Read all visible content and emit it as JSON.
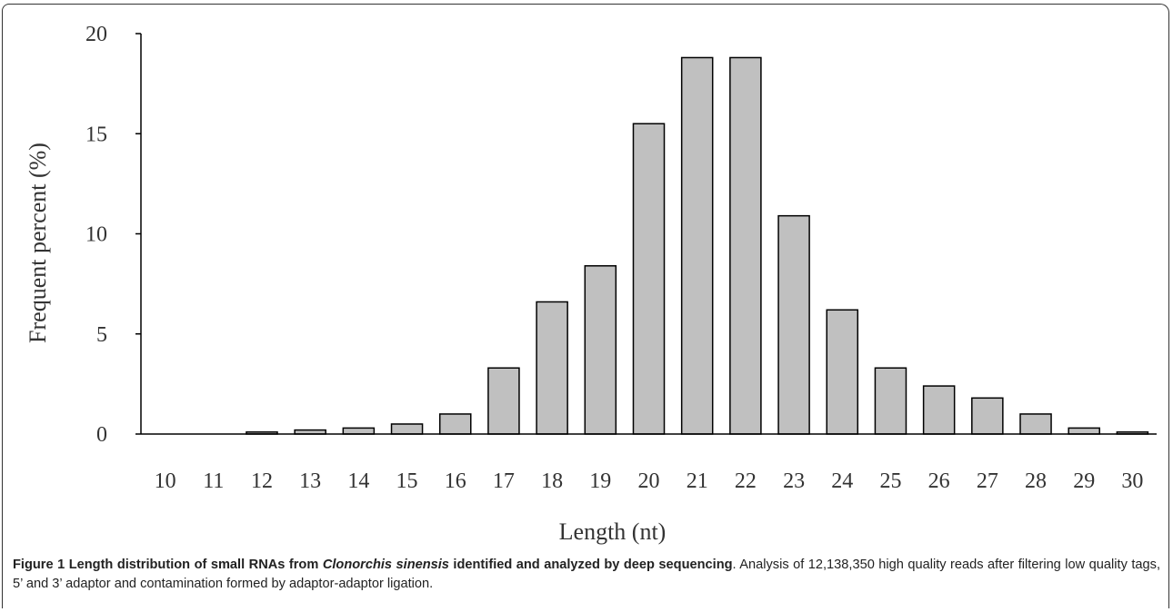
{
  "chart_data": {
    "type": "bar",
    "categories": [
      "10",
      "11",
      "12",
      "13",
      "14",
      "15",
      "16",
      "17",
      "18",
      "19",
      "20",
      "21",
      "22",
      "23",
      "24",
      "25",
      "26",
      "27",
      "28",
      "29",
      "30"
    ],
    "values": [
      0,
      0,
      0.1,
      0.2,
      0.3,
      0.5,
      1.0,
      3.3,
      6.6,
      8.4,
      15.5,
      18.8,
      18.8,
      10.9,
      6.2,
      3.3,
      2.4,
      1.8,
      1.0,
      0.3,
      0.1
    ],
    "xlabel": "Length (nt)",
    "ylabel": "Frequent percent (%)",
    "ylim": [
      0,
      20
    ],
    "yticks": [
      "0",
      "5",
      "10",
      "15",
      "20"
    ],
    "bar_color": "#c0c0c0",
    "bar_stroke": "#000000",
    "grid": false
  },
  "caption": {
    "label": "Figure 1",
    "title_pre": "Length distribution of small RNAs from ",
    "title_species": "Clonorchis sinensis",
    "title_post": " identified and analyzed by deep sequencing",
    "body": ". Analysis of 12,138,350 high quality reads after filtering low quality tags, 5’ and 3’ adaptor and contamination formed by adaptor-adaptor ligation."
  }
}
